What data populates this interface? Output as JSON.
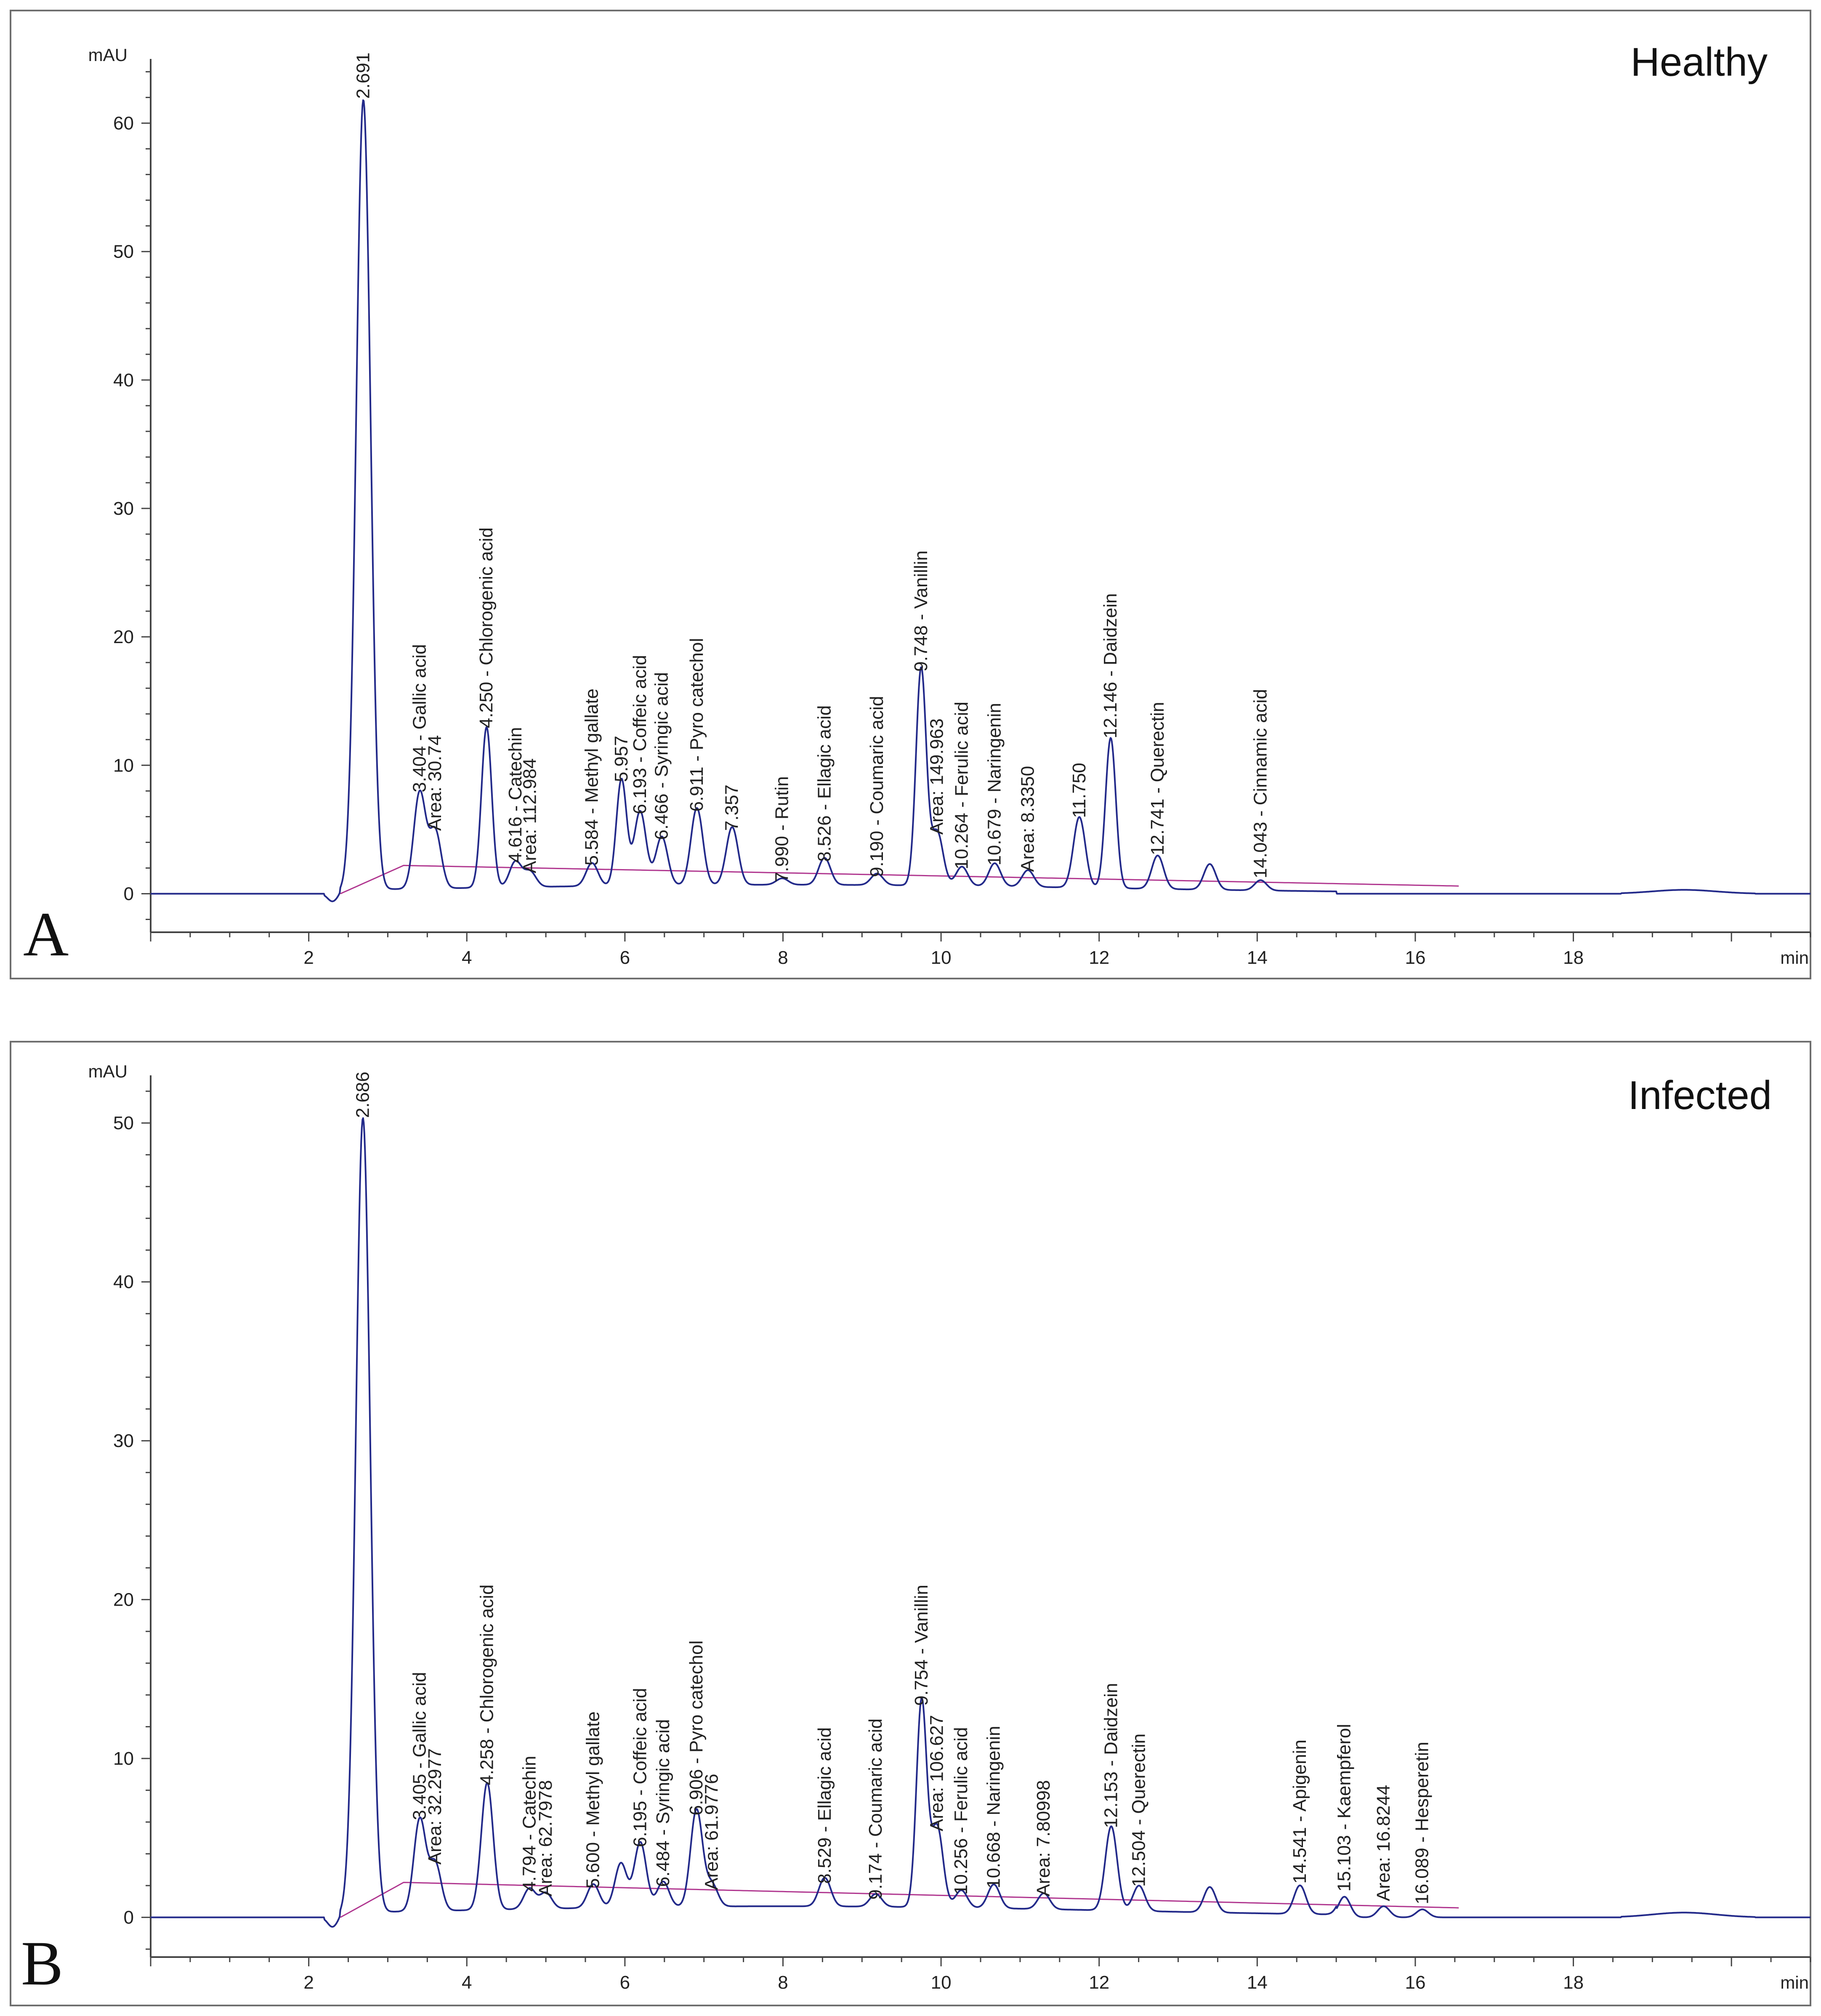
{
  "chart_data": [
    {
      "type": "line",
      "panel_letter": "A",
      "title": "Healthy",
      "ylabel": "mAU",
      "xlabel": "min",
      "xlim": [
        0,
        21
      ],
      "ylim": [
        -3,
        65
      ],
      "x_ticks": [
        2,
        4,
        6,
        8,
        10,
        12,
        14,
        16,
        18
      ],
      "y_ticks": [
        0,
        10,
        20,
        30,
        40,
        50,
        60
      ],
      "peaks": [
        {
          "rt": 2.691,
          "height": 61.5,
          "label": "2.691"
        },
        {
          "rt": 3.404,
          "height": 7.5,
          "label": "3.404 -  Gallic acid"
        },
        {
          "rt": 3.6,
          "height": 4.5,
          "label": "Area: 30.74"
        },
        {
          "rt": 4.25,
          "height": 12.5,
          "label": "4.250 -  Chlorogenic acid"
        },
        {
          "rt": 4.616,
          "height": 2.0,
          "label": "4.616 -  Catechin"
        },
        {
          "rt": 4.8,
          "height": 1.2,
          "label": "Area: 112.984"
        },
        {
          "rt": 5.584,
          "height": 1.8,
          "label": "5.584 -  Methyl gallate"
        },
        {
          "rt": 5.957,
          "height": 8.3,
          "label": "5.957"
        },
        {
          "rt": 6.193,
          "height": 5.8,
          "label": "6.193 -  Coffeic acid"
        },
        {
          "rt": 6.466,
          "height": 3.8,
          "label": "6.466 -  Syringic acid"
        },
        {
          "rt": 6.911,
          "height": 6.0,
          "label": "6.911 -  Pyro catechol"
        },
        {
          "rt": 7.357,
          "height": 4.5,
          "label": "7.357"
        },
        {
          "rt": 7.99,
          "height": 0.5,
          "label": "7.990 -  Rutin"
        },
        {
          "rt": 8.526,
          "height": 2.1,
          "label": "8.526 -  Ellagic acid"
        },
        {
          "rt": 9.19,
          "height": 0.9,
          "label": "9.190 -  Coumaric acid"
        },
        {
          "rt": 9.748,
          "height": 16.9,
          "label": "9.748 -  Vanillin"
        },
        {
          "rt": 9.95,
          "height": 4.2,
          "label": "Area: 149.963"
        },
        {
          "rt": 10.264,
          "height": 1.5,
          "label": "10.264 -  Ferulic acid"
        },
        {
          "rt": 10.679,
          "height": 1.8,
          "label": "10.679 -  Naringenin"
        },
        {
          "rt": 11.1,
          "height": 1.3,
          "label": "Area: 8.3350"
        },
        {
          "rt": 11.75,
          "height": 5.5,
          "label": "11.750"
        },
        {
          "rt": 12.146,
          "height": 11.7,
          "label": "12.146 -  Daidzein"
        },
        {
          "rt": 12.741,
          "height": 2.6,
          "label": "12.741 -  Querectin"
        },
        {
          "rt": 13.4,
          "height": 2.0,
          "label": ""
        },
        {
          "rt": 14.043,
          "height": 0.8,
          "label": "14.043 -  Cinnamic acid"
        }
      ]
    },
    {
      "type": "line",
      "panel_letter": "B",
      "title": "Infected",
      "ylabel": "mAU",
      "xlabel": "min",
      "xlim": [
        0,
        21
      ],
      "ylim": [
        -2.5,
        53
      ],
      "x_ticks": [
        2,
        4,
        6,
        8,
        10,
        12,
        14,
        16,
        18
      ],
      "y_ticks": [
        0,
        10,
        20,
        30,
        40,
        50
      ],
      "peaks": [
        {
          "rt": 2.686,
          "height": 50.0,
          "label": "2.686"
        },
        {
          "rt": 3.405,
          "height": 5.8,
          "label": "3.405 -  Gallic acid"
        },
        {
          "rt": 3.6,
          "height": 3.0,
          "label": "Area: 32.2977"
        },
        {
          "rt": 4.258,
          "height": 8.0,
          "label": "4.258 -  Chlorogenic acid"
        },
        {
          "rt": 4.794,
          "height": 1.3,
          "label": "4.794 -  Catechin"
        },
        {
          "rt": 5.0,
          "height": 1.0,
          "label": "Area: 62.7978"
        },
        {
          "rt": 5.6,
          "height": 1.5,
          "label": "5.600 -  Methyl gallate"
        },
        {
          "rt": 5.95,
          "height": 2.8,
          "label": ""
        },
        {
          "rt": 6.195,
          "height": 4.1,
          "label": "6.195 -  Coffeic acid"
        },
        {
          "rt": 6.484,
          "height": 1.6,
          "label": "6.484 -  Syringic acid"
        },
        {
          "rt": 6.906,
          "height": 6.1,
          "label": "6.906 -  Pyro catechol"
        },
        {
          "rt": 7.1,
          "height": 1.4,
          "label": "Area: 61.9776"
        },
        {
          "rt": 8.529,
          "height": 1.8,
          "label": "8.529 -  Ellagic acid"
        },
        {
          "rt": 9.174,
          "height": 0.8,
          "label": "9.174 -  Coumaric acid"
        },
        {
          "rt": 9.754,
          "height": 13.0,
          "label": "9.754 -  Vanillin"
        },
        {
          "rt": 9.95,
          "height": 5.1,
          "label": "Area: 106.627"
        },
        {
          "rt": 10.256,
          "height": 1.1,
          "label": "10.256 -  Ferulic acid"
        },
        {
          "rt": 10.668,
          "height": 1.5,
          "label": "10.668 -  Naringenin"
        },
        {
          "rt": 11.3,
          "height": 1.0,
          "label": "Area: 7.80998"
        },
        {
          "rt": 12.153,
          "height": 5.3,
          "label": "12.153 -  Daidzein"
        },
        {
          "rt": 12.504,
          "height": 1.6,
          "label": "12.504 -  Querectin"
        },
        {
          "rt": 13.4,
          "height": 1.6,
          "label": ""
        },
        {
          "rt": 14.541,
          "height": 1.8,
          "label": "14.541 -  Apigenin"
        },
        {
          "rt": 15.103,
          "height": 1.3,
          "label": "15.103 -  Kaempferol"
        },
        {
          "rt": 15.6,
          "height": 0.7,
          "label": "Area: 16.8244"
        },
        {
          "rt": 16.089,
          "height": 0.5,
          "label": "16.089 -  Hesperetin"
        }
      ]
    }
  ]
}
